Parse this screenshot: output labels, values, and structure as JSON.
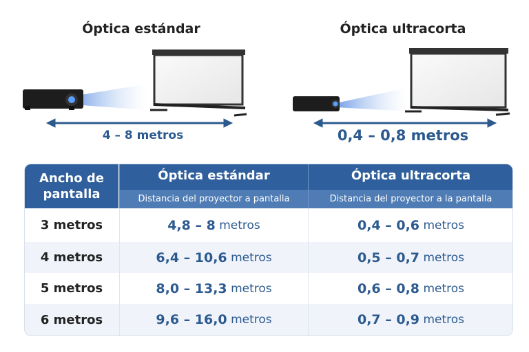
{
  "illustrations": {
    "standard": {
      "title": "Óptica estándar",
      "distance": "4 – 8 metros"
    },
    "ultrashort": {
      "title": "Óptica ultracorta",
      "distance": "0,4 – 0,8 metros"
    }
  },
  "table": {
    "headers": {
      "width": "Ancho de pantalla",
      "standard": "Óptica estándar",
      "standard_sub": "Distancia del proyector a pantalla",
      "ultrashort": "Óptica ultracorta",
      "ultrashort_sub": "Distancia del proyector a la pantalla"
    },
    "unit": "metros",
    "rows": [
      {
        "width": "3 metros",
        "standard": "4,8 – 8",
        "ultrashort": "0,4 – 0,6"
      },
      {
        "width": "4 metros",
        "standard": "6,4 – 10,6",
        "ultrashort": "0,5 – 0,7"
      },
      {
        "width": "5 metros",
        "standard": "8,0 – 13,3",
        "ultrashort": "0,6 – 0,8"
      },
      {
        "width": "6 metros",
        "standard": "9,6 – 16,0",
        "ultrashort": "0,7 – 0,9"
      }
    ]
  },
  "colors": {
    "header": "#2f5f9c",
    "subheader": "#4f7cb4",
    "accent": "#2c5a8f"
  }
}
